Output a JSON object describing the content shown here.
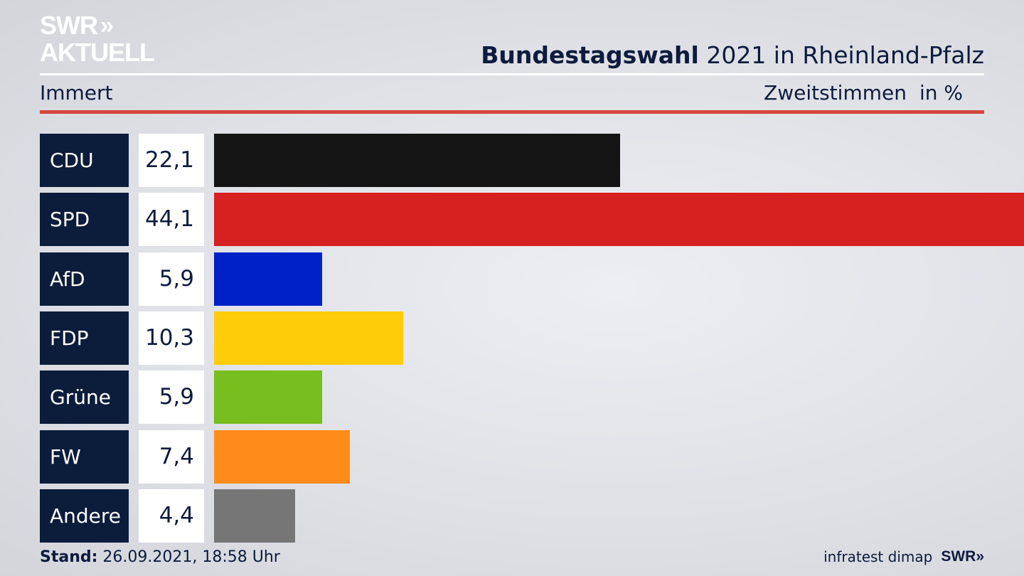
{
  "logo": {
    "line1": "SWR",
    "line2": "AKTUELL",
    "chevrons": "»"
  },
  "header": {
    "title_bold": "Bundestagswahl",
    "title_rest": " 2021 in Rheinland-Pfalz",
    "region": "Immert",
    "measure": "Zweitstimmen",
    "unit": "in %"
  },
  "colors": {
    "accent_red_rule": "#d4463b",
    "label_bg": "#0c1c3b"
  },
  "chart_data": {
    "type": "bar",
    "orientation": "horizontal",
    "xlim": [
      0,
      44.1
    ],
    "categories": [
      "CDU",
      "SPD",
      "AfD",
      "FDP",
      "Grüne",
      "FW",
      "Andere"
    ],
    "labels": [
      "22,1",
      "44,1",
      "5,9",
      "10,3",
      "5,9",
      "7,4",
      "4,4"
    ],
    "values": [
      22.1,
      44.1,
      5.9,
      10.3,
      5.9,
      7.4,
      4.4
    ],
    "colors": [
      "#141414",
      "#d72020",
      "#0021c8",
      "#ffcc0a",
      "#76bd1d",
      "#ff8c1a",
      "#767676"
    ]
  },
  "footer": {
    "stand_label": "Stand:",
    "stand_value": " 26.09.2021, 18:58 Uhr",
    "source": "infratest dimap",
    "brand": "SWR",
    "brand_chevrons": "»"
  }
}
